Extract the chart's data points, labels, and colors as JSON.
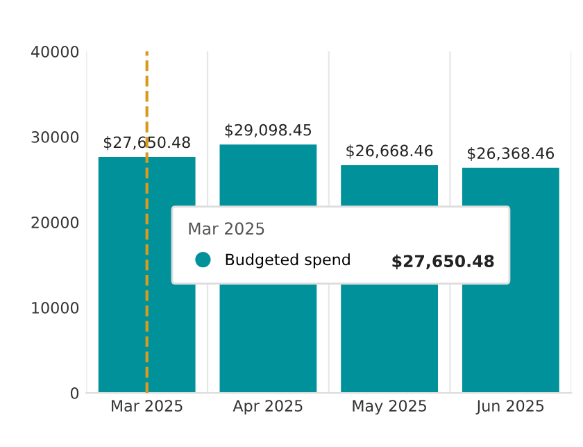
{
  "chart_data": {
    "type": "bar",
    "categories": [
      "Mar 2025",
      "Apr 2025",
      "May 2025",
      "Jun 2025"
    ],
    "series": [
      {
        "name": "Budgeted spend",
        "color": "#00919a",
        "values": [
          27650.48,
          29098.45,
          26668.46,
          26368.46
        ]
      }
    ],
    "value_labels": [
      "$27,650.48",
      "$29,098.45",
      "$26,668.46",
      "$26,368.46"
    ],
    "ylim": [
      0,
      40000
    ],
    "yticks": [
      0,
      10000,
      20000,
      30000,
      40000
    ],
    "grid": "x",
    "legend": "center",
    "legend_title": "Mar 2025",
    "ref_lines": [
      {
        "axis": "x",
        "value": "Mar 2025",
        "color": "#d99a1e",
        "line_style": "dashed"
      }
    ],
    "annotations": [
      "$27,650.48"
    ]
  }
}
